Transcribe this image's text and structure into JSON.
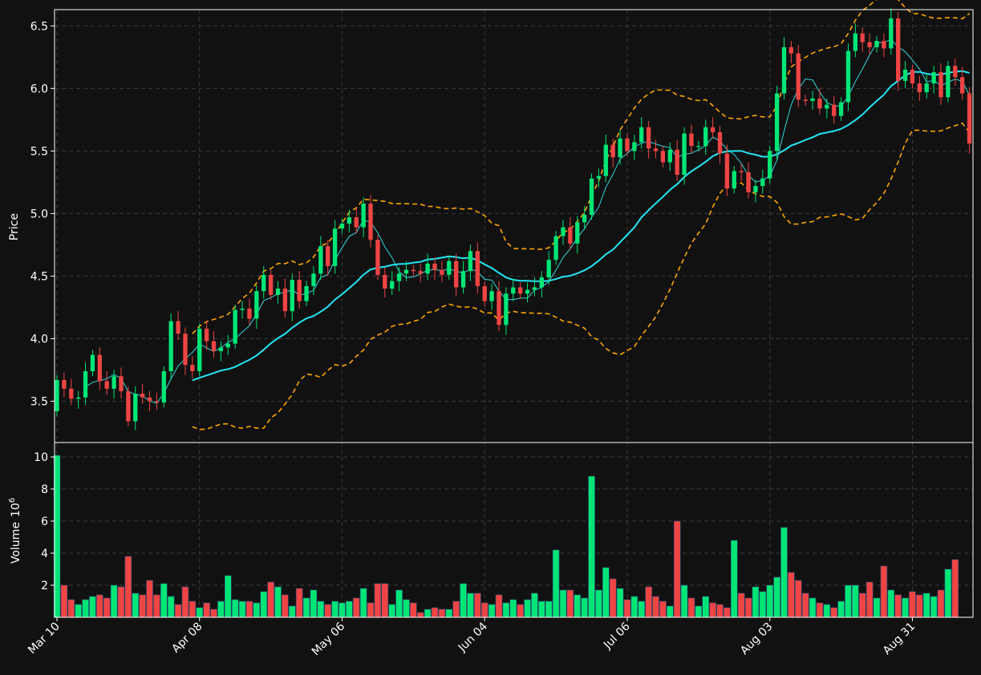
{
  "chart_data": [
    {
      "type": "candlestick",
      "panel": "price",
      "ylabel": "Price",
      "ylim": [
        3.17,
        6.63
      ],
      "yticks": [
        "3.5",
        "4.0",
        "4.5",
        "5.0",
        "5.5",
        "6.0",
        "6.5"
      ],
      "grid": true,
      "up_color": "#00e676",
      "down_color": "#ef4444",
      "ma_fast_color": "#31d6dc",
      "ma_slow_color": "#22e6f5",
      "band_color": "#ffa500",
      "closes": [
        3.67,
        3.6,
        3.52,
        3.53,
        3.74,
        3.87,
        3.66,
        3.6,
        3.7,
        3.58,
        3.34,
        3.56,
        3.53,
        3.5,
        3.49,
        3.74,
        4.14,
        4.04,
        3.79,
        3.74,
        4.08,
        3.98,
        3.9,
        3.93,
        3.96,
        4.23,
        4.24,
        4.16,
        4.38,
        4.51,
        4.35,
        4.4,
        4.22,
        4.47,
        4.3,
        4.42,
        4.52,
        4.74,
        4.58,
        4.88,
        4.92,
        4.97,
        4.89,
        5.08,
        4.79,
        4.51,
        4.4,
        4.46,
        4.52,
        4.55,
        4.54,
        4.52,
        4.6,
        4.55,
        4.51,
        4.62,
        4.41,
        4.54,
        4.7,
        4.42,
        4.3,
        4.38,
        4.11,
        4.36,
        4.41,
        4.36,
        4.39,
        4.41,
        4.49,
        4.63,
        4.82,
        4.89,
        4.76,
        4.93,
        4.99,
        5.28,
        5.3,
        5.55,
        5.45,
        5.6,
        5.5,
        5.57,
        5.69,
        5.52,
        5.5,
        5.41,
        5.51,
        5.31,
        5.64,
        5.54,
        5.54,
        5.69,
        5.65,
        5.48,
        5.2,
        5.34,
        5.33,
        5.17,
        5.22,
        5.28,
        5.5,
        5.96,
        6.33,
        6.28,
        5.91,
        5.9,
        5.92,
        5.84,
        5.87,
        5.78,
        5.89,
        6.3,
        6.44,
        6.37,
        6.33,
        6.38,
        6.32,
        6.56,
        6.06,
        6.15,
        6.04,
        5.97,
        6.04,
        6.13,
        5.93,
        6.18,
        6.09,
        5.96,
        5.56
      ],
      "x_tick_labels": [
        "Mar 10",
        "Apr 08",
        "May 06",
        "Jun 04",
        "Jul 06",
        "Aug 03",
        "Aug 31"
      ],
      "x_tick_index": [
        0,
        20,
        40,
        60,
        80,
        100,
        120
      ]
    },
    {
      "type": "bar",
      "panel": "volume",
      "ylabel": "Volume",
      "ylabel_exponent": "10",
      "ylabel_exponent_power": "6",
      "ylim": [
        0,
        10.1
      ],
      "yticks": [
        "2",
        "4",
        "6",
        "8",
        "10"
      ],
      "grid": true,
      "values": [
        10.1,
        2.0,
        1.1,
        0.8,
        1.1,
        1.3,
        1.4,
        1.2,
        2.0,
        1.9,
        3.8,
        1.5,
        1.4,
        2.3,
        1.4,
        2.1,
        1.3,
        0.8,
        1.9,
        1.0,
        0.6,
        0.9,
        0.5,
        1.0,
        2.6,
        1.1,
        1.0,
        1.0,
        0.9,
        1.6,
        2.2,
        1.9,
        1.4,
        0.7,
        1.8,
        1.2,
        1.7,
        1.0,
        0.8,
        1.0,
        0.9,
        1.0,
        1.2,
        1.8,
        0.9,
        2.1,
        2.1,
        0.8,
        1.7,
        1.1,
        0.9,
        0.3,
        0.5,
        0.6,
        0.5,
        0.5,
        1.0,
        2.1,
        1.5,
        1.5,
        0.9,
        0.8,
        1.4,
        0.9,
        1.1,
        0.8,
        1.1,
        1.5,
        1.0,
        1.0,
        4.2,
        1.7,
        1.7,
        1.4,
        1.2,
        8.8,
        1.7,
        3.1,
        2.4,
        1.8,
        1.1,
        1.3,
        1.0,
        1.9,
        1.3,
        1.0,
        0.7,
        6.0,
        2.0,
        1.2,
        0.7,
        1.3,
        0.9,
        0.8,
        0.6,
        4.8,
        1.5,
        1.2,
        1.9,
        1.6,
        2.0,
        2.5,
        5.6,
        2.8,
        2.3,
        1.5,
        1.2,
        0.9,
        0.8,
        0.6,
        1.0,
        2.0,
        2.0,
        1.5,
        2.2,
        1.2,
        3.2,
        1.7,
        1.4,
        1.2,
        1.6,
        1.4,
        1.5,
        1.3,
        1.7,
        3.0,
        3.6
      ]
    }
  ]
}
